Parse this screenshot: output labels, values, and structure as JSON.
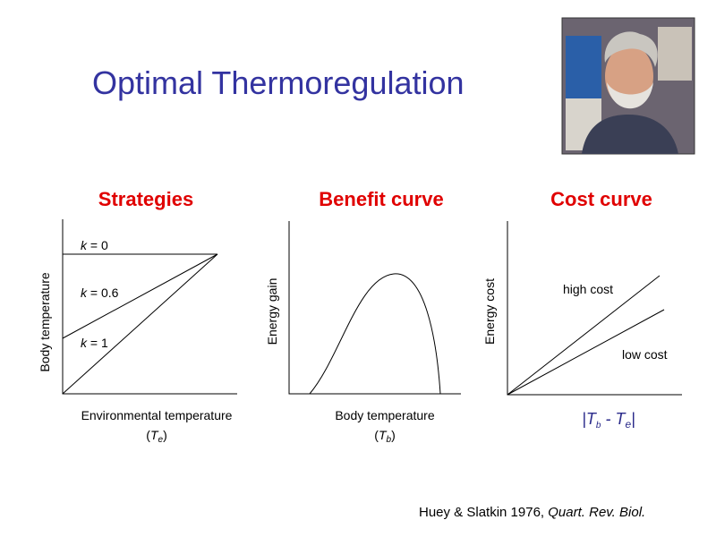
{
  "title": "Optimal Thermoregulation",
  "panels": [
    {
      "title": "Strategies",
      "y_label": "Body temperature",
      "x_label": "Environmental temperature",
      "x_symbol": [
        "(",
        "T",
        "e",
        ")"
      ],
      "lines": [
        {
          "var": "k",
          "text": " = 0"
        },
        {
          "var": "k",
          "text": " = 0.6"
        },
        {
          "var": "k",
          "text": " = 1"
        }
      ]
    },
    {
      "title": "Benefit curve",
      "y_label": "Energy gain",
      "x_label": "Body temperature",
      "x_symbol": [
        "(",
        "T",
        "b",
        ")"
      ]
    },
    {
      "title": "Cost curve",
      "y_label": "Energy cost",
      "x_symbol": [
        "|",
        "T",
        "b",
        " - ",
        "T",
        "e",
        "|"
      ],
      "lines": [
        "high cost",
        "low cost"
      ]
    }
  ],
  "citation": {
    "authors": "Huey & Slatkin 1976, ",
    "journal": "Quart. Rev. Biol."
  }
}
